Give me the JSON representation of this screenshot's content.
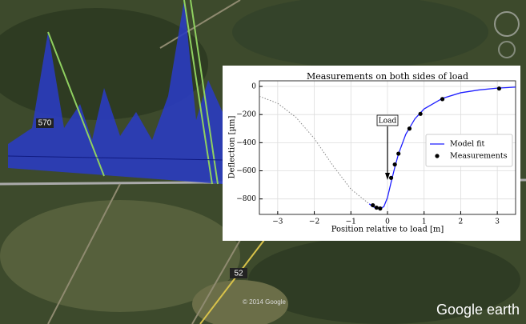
{
  "chart_data": {
    "type": "line",
    "title": "Measurements on both sides of load",
    "x_label": "Position relative to load [m]",
    "y_label": "Deflection [µm]",
    "annotation": "Load",
    "annotation_x": 0,
    "xlim": [
      -3.5,
      3.5
    ],
    "xticks": [
      {
        "value": -3,
        "label": "−3"
      },
      {
        "value": -2,
        "label": "−2"
      },
      {
        "value": -1,
        "label": "−1"
      },
      0,
      1,
      2,
      3
    ],
    "ylim": [
      -910,
      40
    ],
    "yticks": [
      0,
      {
        "value": -200,
        "label": "−200"
      },
      {
        "value": -400,
        "label": "−400"
      },
      {
        "value": -600,
        "label": "−600"
      },
      {
        "value": -800,
        "label": "−800"
      }
    ],
    "grid": true,
    "legend": "right",
    "series": [
      {
        "style": "dotted",
        "color": "#888888",
        "x": [
          -3.5,
          -3,
          -2.5,
          -2,
          -1.5,
          -1,
          -0.5
        ],
        "values": [
          -70,
          -120,
          -220,
          -370,
          -560,
          -730,
          -835
        ]
      },
      {
        "name": "Model fit",
        "style": "line",
        "color": "#1f1fff",
        "x": [
          -0.5,
          -0.4,
          -0.3,
          -0.2,
          -0.1,
          0,
          0.1,
          0.2,
          0.3,
          0.5,
          0.75,
          1,
          1.5,
          2,
          2.5,
          3,
          3.5
        ],
        "values": [
          -835,
          -855,
          -866,
          -870,
          -855,
          -790,
          -680,
          -575,
          -480,
          -340,
          -230,
          -160,
          -85,
          -45,
          -25,
          -12,
          -5
        ]
      },
      {
        "name": "Measurements",
        "style": "points",
        "color": "#000000",
        "x": [
          -0.4,
          -0.3,
          -0.2,
          0.1,
          0.2,
          0.3,
          0.6,
          0.9,
          1.5,
          3.05
        ],
        "values": [
          -845,
          -862,
          -868,
          -650,
          -555,
          -478,
          -300,
          -195,
          -90,
          -15
        ]
      }
    ]
  },
  "map_overlay": {
    "road_labels": [
      "570",
      "52"
    ],
    "copyright": "© 2014 Google",
    "logo": "Google earth"
  }
}
